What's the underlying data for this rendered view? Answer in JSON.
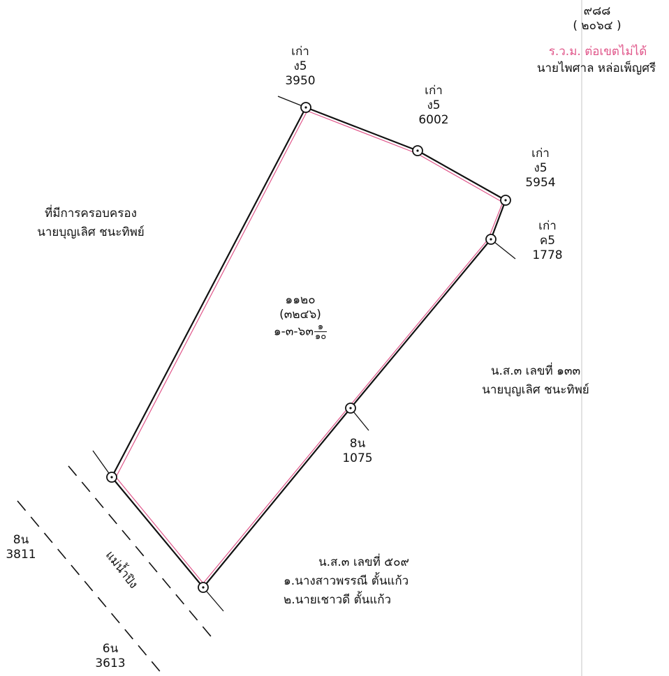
{
  "header": {
    "parcel_no": "๙๘๘",
    "parcel_sub": "( ๒๐๖๔ )",
    "surveyor_note": "ร.ว.ม. ต่อเขตไม่ได้",
    "surveyor_name": "นายไพศาล หล่อเพ็ญศรี"
  },
  "parcel": {
    "number": "๑๑๒๐",
    "sub_number": "(๓๒๔๖)",
    "area_main": "๑-๓-๖๓",
    "area_frac_num": "๑",
    "area_frac_den": "๑๐"
  },
  "markers": [
    {
      "id": "m1",
      "line1": "เก่า",
      "line2": "ง5",
      "line3": "3950"
    },
    {
      "id": "m2",
      "line1": "เก่า",
      "line2": "ง5",
      "line3": "6002"
    },
    {
      "id": "m3",
      "line1": "เก่า",
      "line2": "ง5",
      "line3": "5954"
    },
    {
      "id": "m4",
      "line1": "เก่า",
      "line2": "ค5",
      "line3": "1778"
    },
    {
      "id": "m5",
      "line1": "8น",
      "line2": "1075"
    },
    {
      "id": "m6",
      "line1": "8น",
      "line2": "3811"
    },
    {
      "id": "m7",
      "line1": "6น",
      "line2": "3613"
    }
  ],
  "neighbors": {
    "west_line1": "ที่มีการครอบครอง",
    "west_line2": "นายบุญเลิศ ชนะทิพย์",
    "east_line1": "น.ส.๓ เลขที่ ๑๓๓",
    "east_line2": "นายบุญเลิศ ชนะทิพย์",
    "south_line1": "น.ส.๓ เลขที่ ๕๐๙",
    "south_line2": "๑.นางสาวพรรณี ตั้นแก้ว",
    "south_line3": "๒.นายเชาวดี ตั้นแก้ว"
  },
  "river": {
    "label": "แม่น้ำปิง"
  },
  "colors": {
    "boundary": "#111111",
    "boundary_pink": "#e0568a",
    "note_pink": "#e0568a"
  }
}
